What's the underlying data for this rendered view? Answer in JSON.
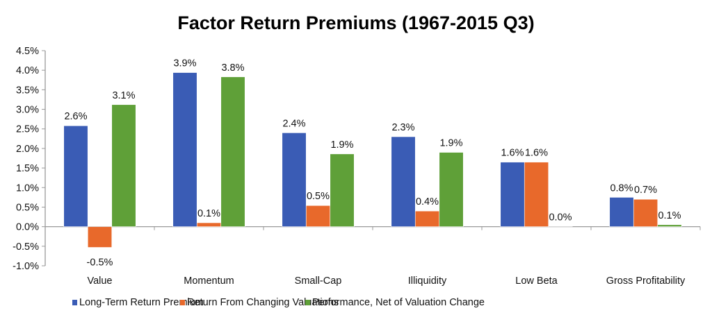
{
  "chart_data": {
    "type": "bar",
    "title": "Factor Return Premiums (1967-2015 Q3)",
    "xlabel": "",
    "ylabel": "",
    "ylim": [
      -1.0,
      4.5
    ],
    "yticks": [
      "4.5%",
      "4.0%",
      "3.5%",
      "3.0%",
      "2.5%",
      "2.0%",
      "1.5%",
      "1.0%",
      "0.5%",
      "0.0%",
      "-0.5%",
      "-1.0%"
    ],
    "grid": false,
    "legend_position": "bottom",
    "categories": [
      "Value",
      "Momentum",
      "Small-Cap",
      "Illiquidity",
      "Low Beta",
      "Gross Profitability"
    ],
    "series": [
      {
        "name": "Long-Term Return Premium",
        "color": "#3a5cb5",
        "values": [
          2.58,
          3.94,
          2.4,
          2.3,
          1.65,
          0.75
        ],
        "labels": [
          "2.6%",
          "3.9%",
          "2.4%",
          "2.3%",
          "1.6%",
          "0.8%"
        ]
      },
      {
        "name": "Return From Changing Valuations",
        "color": "#e8692b",
        "values": [
          -0.53,
          0.1,
          0.54,
          0.4,
          1.65,
          0.7
        ],
        "labels": [
          "-0.5%",
          "0.1%",
          "0.5%",
          "0.4%",
          "1.6%",
          "0.7%"
        ]
      },
      {
        "name": "Performance, Net of Valuation Change",
        "color": "#5fa038",
        "values": [
          3.12,
          3.83,
          1.86,
          1.9,
          0.0,
          0.05
        ],
        "labels": [
          "3.1%",
          "3.8%",
          "1.9%",
          "1.9%",
          "0.0%",
          "0.1%"
        ]
      }
    ]
  }
}
